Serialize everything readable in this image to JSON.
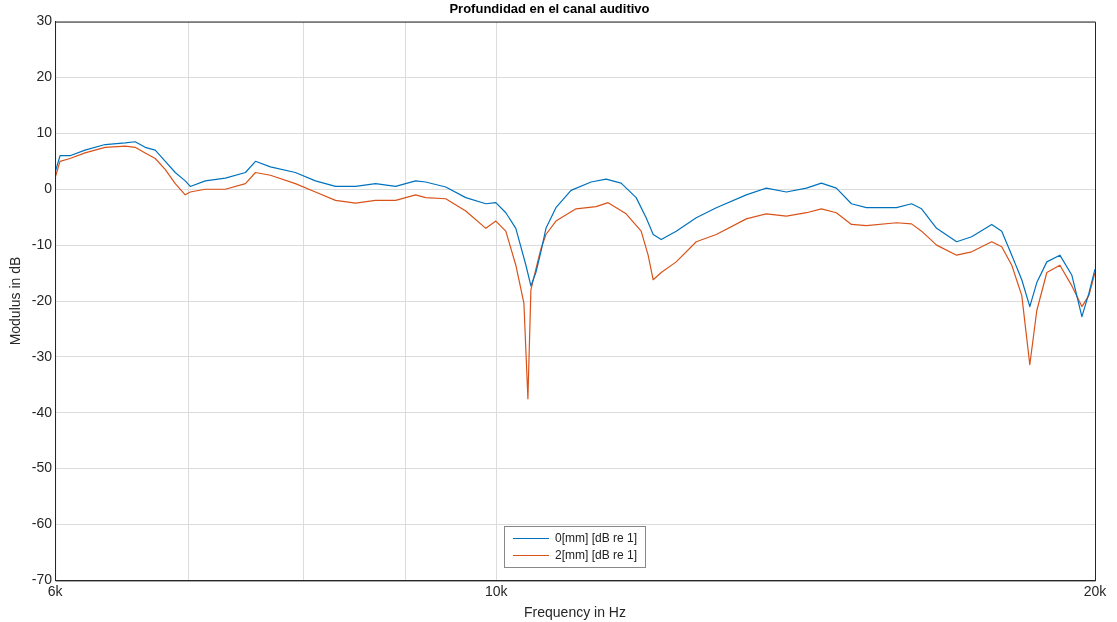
{
  "chart_data": {
    "type": "line",
    "title": "Profundidad en el canal auditivo",
    "xlabel": "Frequency in Hz",
    "ylabel": "Modulus in dB",
    "log": "x",
    "grid": true,
    "legend": "bottom",
    "xlim": [
      6000,
      20000
    ],
    "xticks": [
      {
        "value": 6000,
        "label": "6k"
      },
      {
        "value": 7000,
        "label": null
      },
      {
        "value": 8000,
        "label": null
      },
      {
        "value": 9000,
        "label": null
      },
      {
        "value": 10000,
        "label": "10k"
      },
      {
        "value": 20000,
        "label": "20k"
      }
    ],
    "ylim": [
      -70,
      30
    ],
    "yticks": [
      -70,
      -60,
      -50,
      -40,
      -30,
      -20,
      -10,
      0,
      10,
      20,
      30
    ],
    "series": [
      {
        "name": "0[mm] [dB re 1]",
        "color": "#0072bd",
        "x": [
          6000,
          6035,
          6105,
          6212,
          6358,
          6508,
          6583,
          6660,
          6738,
          6817,
          6896,
          6976,
          7017,
          7140,
          7308,
          7480,
          7567,
          7699,
          7925,
          8111,
          8302,
          8497,
          8696,
          8900,
          9109,
          9215,
          9432,
          9653,
          9880,
          9995,
          10111,
          10229,
          10349,
          10409,
          10469,
          10530,
          10592,
          10715,
          10904,
          11160,
          11356,
          11555,
          11758,
          11895,
          11992,
          12104,
          12316,
          12605,
          12901,
          13357,
          13671,
          13992,
          14320,
          14570,
          14825,
          15086,
          15350,
          15894,
          16173,
          16362,
          16649,
          17040,
          17339,
          17746,
          17953,
          18163,
          18374,
          18546,
          18697,
          18915,
          19203,
          19472,
          19699,
          19860,
          20000
        ],
        "values": [
          3,
          6,
          6,
          7,
          8,
          8.3,
          8.5,
          7.5,
          7,
          5,
          3,
          1.5,
          0.5,
          1.5,
          2,
          3,
          5,
          4,
          3,
          1.5,
          0.5,
          0.5,
          1,
          0.5,
          1.5,
          1.3,
          0.4,
          -1.5,
          -2.6,
          -2.4,
          -4.2,
          -7,
          -13.6,
          -17.3,
          -14.9,
          -11.2,
          -7,
          -3.3,
          -0.2,
          1.3,
          1.8,
          1.1,
          -1.5,
          -5.1,
          -8.1,
          -9,
          -7.5,
          -5.1,
          -3.3,
          -1,
          0.2,
          -0.5,
          0.2,
          1.1,
          0.2,
          -2.6,
          -3.3,
          -3.3,
          -2.6,
          -3.5,
          -7,
          -9.4,
          -8.5,
          -6.3,
          -7.5,
          -11.8,
          -16.2,
          -21,
          -16.7,
          -13,
          -11.8,
          -15.4,
          -22.8,
          -18.6,
          -14.3
        ]
      },
      {
        "name": "2[mm] [dB re 1]",
        "color": "#d95319",
        "x": [
          6000,
          6035,
          6105,
          6212,
          6358,
          6508,
          6583,
          6660,
          6738,
          6817,
          6896,
          6976,
          7017,
          7140,
          7308,
          7480,
          7567,
          7699,
          7925,
          8111,
          8302,
          8497,
          8696,
          8900,
          9109,
          9215,
          9432,
          9653,
          9880,
          9995,
          10111,
          10229,
          10325,
          10373,
          10409,
          10469,
          10530,
          10592,
          10715,
          10967,
          11225,
          11382,
          11622,
          11826,
          11922,
          11992,
          12104,
          12316,
          12605,
          12901,
          13357,
          13671,
          13992,
          14320,
          14570,
          14825,
          15086,
          15350,
          15894,
          16173,
          16362,
          16649,
          17040,
          17339,
          17746,
          17953,
          18163,
          18374,
          18546,
          18697,
          18915,
          19203,
          19472,
          19699,
          19860,
          20000
        ],
        "values": [
          2,
          5,
          5.5,
          6.5,
          7.5,
          7.7,
          7.5,
          6.5,
          5.5,
          3.5,
          1,
          -1,
          -0.5,
          0,
          0,
          1,
          3,
          2.5,
          1,
          -0.5,
          -2,
          -2.5,
          -2,
          -2,
          -1,
          -1.5,
          -1.7,
          -3.9,
          -7,
          -5.7,
          -7.5,
          -13.6,
          -20.4,
          -37.5,
          -18,
          -14.3,
          -10.7,
          -8.1,
          -5.7,
          -3.5,
          -3.1,
          -2.4,
          -4.4,
          -7.5,
          -11.8,
          -16.2,
          -14.9,
          -13,
          -9.4,
          -8.1,
          -5.3,
          -4.4,
          -4.8,
          -4.2,
          -3.5,
          -4.2,
          -6.3,
          -6.5,
          -6,
          -6.2,
          -7.5,
          -10,
          -11.8,
          -11.2,
          -9.4,
          -10.3,
          -13.6,
          -19,
          -31.4,
          -21.7,
          -14.9,
          -13.6,
          -17.3,
          -21,
          -19,
          -14.9
        ]
      }
    ]
  }
}
